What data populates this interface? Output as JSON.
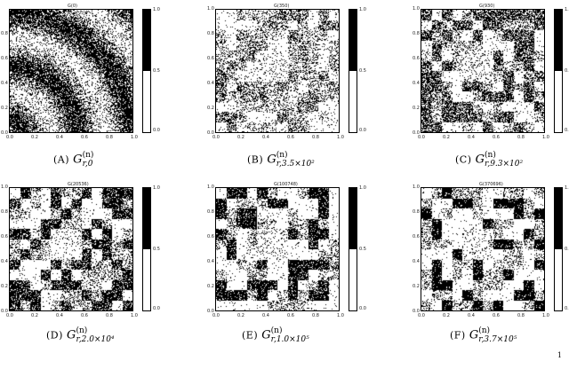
{
  "figure": {
    "panels": [
      {
        "id": "a",
        "plot_title": "G(0)",
        "caption_tag": "(A)",
        "caption_sub": "r,0",
        "caption_sup": "(n)",
        "pattern": "rings",
        "yticks": [
          "0.8",
          "0.6",
          "0.4",
          "0.2",
          "0.0"
        ],
        "xticks": [
          "0.0",
          "0.2",
          "0.4",
          "0.6",
          "0.8",
          "1.0"
        ]
      },
      {
        "id": "b",
        "plot_title": "G(350)",
        "caption_tag": "(B)",
        "caption_sub": "r,3.5×10²",
        "caption_sup": "(n)",
        "pattern": "blocks-light",
        "yticks": [
          "1.0",
          "0.8",
          "0.6",
          "0.4",
          "0.2",
          "0.0"
        ],
        "xticks": [
          "0.0",
          "0.2",
          "0.4",
          "0.6",
          "0.8",
          "1.0"
        ]
      },
      {
        "id": "c",
        "plot_title": "G(930)",
        "caption_tag": "(C)",
        "caption_sub": "r,9.3×10²",
        "caption_sup": "(n)",
        "pattern": "blocks-medium",
        "yticks": [
          "1.0",
          "0.8",
          "0.6",
          "0.4",
          "0.2",
          "0.0"
        ],
        "xticks": [
          "0.0",
          "0.2",
          "0.4",
          "0.6",
          "0.8",
          "1.0"
        ]
      },
      {
        "id": "d",
        "plot_title": "G(20536)",
        "caption_tag": "(D)",
        "caption_sub": "r,2.0×10⁴",
        "caption_sup": "(n)",
        "pattern": "blocks-dense",
        "yticks": [
          "1.0",
          "0.8",
          "0.6",
          "0.4",
          "0.2",
          "0.0"
        ],
        "xticks": [
          "0.0",
          "0.2",
          "0.4",
          "0.6",
          "0.8",
          "1.0"
        ]
      },
      {
        "id": "e",
        "plot_title": "G(100748)",
        "caption_tag": "(E)",
        "caption_sub": "r,1.0×10⁵",
        "caption_sup": "(n)",
        "pattern": "blocks-dense2",
        "yticks": [
          "1.0",
          "0.8",
          "0.6",
          "0.4",
          "0.2",
          "0.0"
        ],
        "xticks": [
          "0.0",
          "0.2",
          "0.4",
          "0.6",
          "0.8",
          "1.0"
        ]
      },
      {
        "id": "f",
        "plot_title": "G(370696)",
        "caption_tag": "(F)",
        "caption_sub": "r,3.7×10⁵",
        "caption_sup": "(n)",
        "pattern": "blocks-dense3",
        "yticks": [
          "1.0",
          "0.8",
          "0.6",
          "0.4",
          "0.2",
          "0.0"
        ],
        "xticks": [
          "0.0",
          "0.2",
          "0.4",
          "0.6",
          "0.8",
          "1.0"
        ]
      }
    ],
    "colorbar_ticks": [
      "1.0",
      "0.5",
      "0.0"
    ],
    "caption_letter": "G",
    "footnote_mark": "1"
  }
}
